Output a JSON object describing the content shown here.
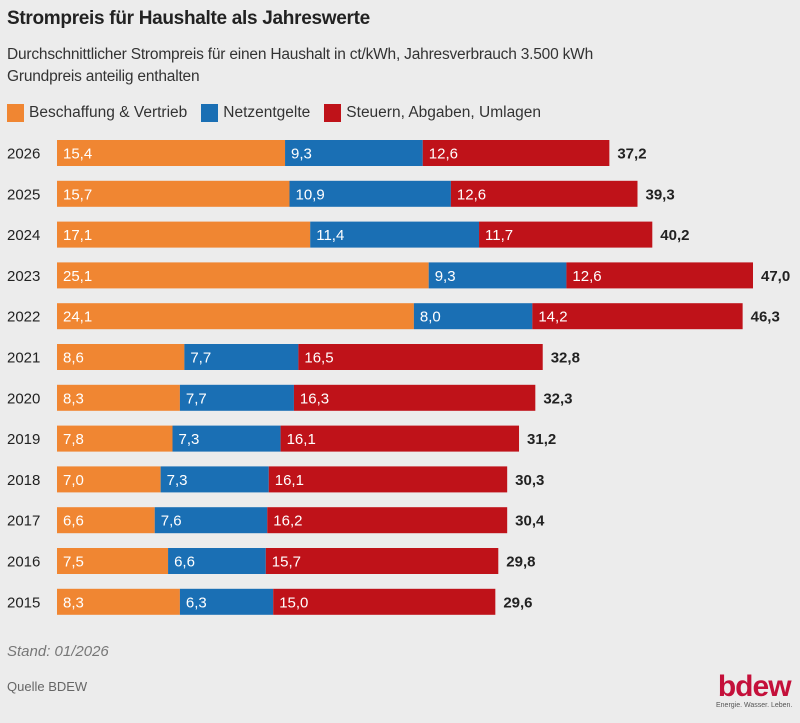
{
  "chart_data": {
    "type": "bar",
    "orientation": "horizontal",
    "stacked": true,
    "title": "Strompreis für Haushalte als Jahreswerte",
    "subtitle": [
      "Durchschnittlicher Strompreis für einen Haushalt in ct/kWh, Jahresverbrauch 3.500 kWh",
      "Grundpreis anteilig enthalten"
    ],
    "categories": [
      "2026",
      "2025",
      "2024",
      "2023",
      "2022",
      "2021",
      "2020",
      "2019",
      "2018",
      "2017",
      "2016",
      "2015"
    ],
    "series": [
      {
        "name": "Beschaffung & Vertrieb",
        "color": "#f08632",
        "values": [
          15.4,
          15.7,
          17.1,
          25.1,
          24.1,
          8.6,
          8.3,
          7.8,
          7.0,
          6.6,
          7.5,
          8.3
        ]
      },
      {
        "name": "Netzentgelte",
        "color": "#1a6fb4",
        "values": [
          9.3,
          10.9,
          11.4,
          9.3,
          8.0,
          7.7,
          7.7,
          7.3,
          7.3,
          7.6,
          6.6,
          6.3
        ]
      },
      {
        "name": "Steuern, Abgaben, Umlagen",
        "color": "#bf1219",
        "values": [
          12.6,
          12.6,
          11.7,
          12.6,
          14.2,
          16.5,
          16.3,
          16.1,
          16.1,
          16.2,
          15.7,
          15.0
        ]
      }
    ],
    "totals": [
      37.2,
      39.3,
      40.2,
      47.0,
      46.3,
      32.8,
      32.3,
      31.2,
      30.3,
      30.4,
      29.8,
      29.6
    ],
    "legend_position": "top-left",
    "grid": false
  },
  "footer": {
    "stand": "Stand: 01/2026",
    "source": "Quelle BDEW"
  },
  "logo": {
    "word": "bdew",
    "tagline": "Energie. Wasser. Leben."
  }
}
